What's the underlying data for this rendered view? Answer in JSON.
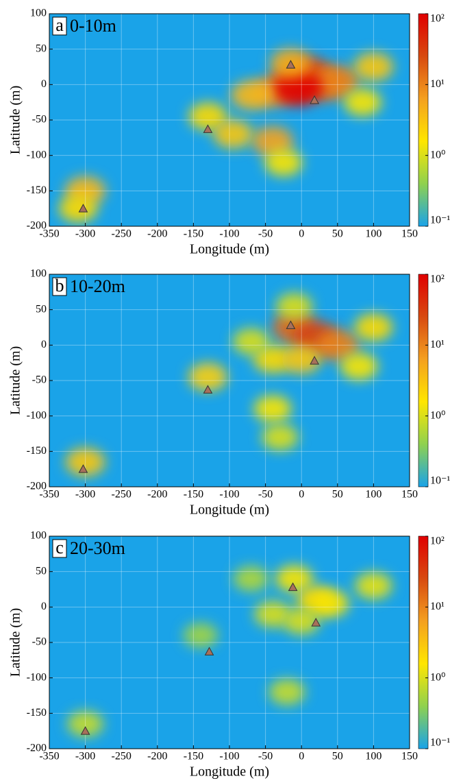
{
  "chart_data": [
    {
      "type": "heatmap",
      "panel_label": "a",
      "title": "0-10m",
      "xlabel": "Longitude (m)",
      "ylabel": "Latitude (m)",
      "xlim": [
        -350,
        150
      ],
      "ylim": [
        -200,
        100
      ],
      "xticks": [
        -350,
        -300,
        -250,
        -200,
        -150,
        -100,
        -50,
        0,
        50,
        100,
        150
      ],
      "yticks": [
        -200,
        -150,
        -100,
        -50,
        0,
        50,
        100
      ],
      "clim": [
        0.1,
        100
      ],
      "log_color": true,
      "cticks": [
        {
          "value": 0.1,
          "label": "10⁻¹"
        },
        {
          "value": 1,
          "label": "10⁰"
        },
        {
          "value": 10,
          "label": "10¹"
        },
        {
          "value": 100,
          "label": "10²"
        }
      ],
      "colormap": [
        "#1aa3e8",
        "#8fd14f",
        "#ffe600",
        "#f4a020",
        "#d84a10",
        "#e00000"
      ],
      "grid": true,
      "x": [
        -10,
        10,
        30,
        50,
        -40,
        -5,
        -15,
        100,
        -40,
        -25,
        -70,
        -130,
        -95,
        -300,
        -310,
        85
      ],
      "y": [
        5,
        15,
        0,
        5,
        -10,
        -5,
        30,
        25,
        -80,
        -110,
        -15,
        -45,
        -70,
        -150,
        -175,
        -25
      ],
      "values": [
        20,
        30,
        15,
        10,
        8,
        100,
        5,
        3,
        6,
        1.5,
        4,
        2,
        3,
        4,
        2,
        1.5
      ],
      "markers": {
        "x": [
          -15,
          18,
          -130,
          -303
        ],
        "y": [
          28,
          -22,
          -63,
          -175
        ],
        "color": "#a8705a"
      }
    },
    {
      "type": "heatmap",
      "panel_label": "b",
      "title": "10-20m",
      "xlabel": "Longitude (m)",
      "ylabel": "Latitude (m)",
      "xlim": [
        -350,
        150
      ],
      "ylim": [
        -200,
        100
      ],
      "xticks": [
        -350,
        -300,
        -250,
        -200,
        -150,
        -100,
        -50,
        0,
        50,
        100,
        150
      ],
      "yticks": [
        -200,
        -150,
        -100,
        -50,
        0,
        50,
        100
      ],
      "clim": [
        0.1,
        100
      ],
      "log_color": true,
      "cticks": [
        {
          "value": 0.1,
          "label": "10⁻¹"
        },
        {
          "value": 1,
          "label": "10⁰"
        },
        {
          "value": 10,
          "label": "10¹"
        },
        {
          "value": 100,
          "label": "10²"
        }
      ],
      "colormap": [
        "#1aa3e8",
        "#8fd14f",
        "#ffe600",
        "#f4a020",
        "#d84a10",
        "#e00000"
      ],
      "grid": true,
      "x": [
        -10,
        20,
        50,
        -40,
        0,
        -70,
        100,
        -40,
        -30,
        -130,
        -300,
        -10,
        80
      ],
      "y": [
        25,
        10,
        0,
        -20,
        -20,
        5,
        25,
        -90,
        -130,
        -45,
        -165,
        55,
        -30
      ],
      "values": [
        15,
        30,
        10,
        2,
        3,
        1,
        2,
        1.5,
        1,
        2.5,
        3,
        1,
        1.5
      ],
      "markers": {
        "x": [
          -15,
          18,
          -130,
          -303
        ],
        "y": [
          28,
          -22,
          -63,
          -175
        ],
        "color": "#a8705a"
      }
    },
    {
      "type": "heatmap",
      "panel_label": "c",
      "title": "20-30m",
      "xlabel": "Longitude (m)",
      "ylabel": "Latitude (m)",
      "xlim": [
        -350,
        150
      ],
      "ylim": [
        -200,
        100
      ],
      "xticks": [
        -350,
        -300,
        -250,
        -200,
        -150,
        -100,
        -50,
        0,
        50,
        100,
        150
      ],
      "yticks": [
        -200,
        -150,
        -100,
        -50,
        0,
        50,
        100
      ],
      "clim": [
        0.1,
        100
      ],
      "log_color": true,
      "cticks": [
        {
          "value": 0.1,
          "label": "10⁻¹"
        },
        {
          "value": 1,
          "label": "10⁰"
        },
        {
          "value": 10,
          "label": "10¹"
        },
        {
          "value": 100,
          "label": "10²"
        }
      ],
      "colormap": [
        "#1aa3e8",
        "#8fd14f",
        "#ffe600",
        "#f4a020",
        "#d84a10",
        "#e00000"
      ],
      "grid": true,
      "x": [
        -10,
        20,
        40,
        -40,
        0,
        100,
        -20,
        -300,
        -140,
        -70
      ],
      "y": [
        40,
        10,
        5,
        -10,
        -20,
        30,
        -120,
        -165,
        -40,
        40
      ],
      "values": [
        1.5,
        2,
        1.5,
        1,
        1,
        1.2,
        0.8,
        0.8,
        0.5,
        0.6
      ],
      "markers": {
        "x": [
          -12,
          20,
          -128,
          -300
        ],
        "y": [
          28,
          -22,
          -63,
          -175
        ],
        "color": "#a8705a"
      }
    }
  ]
}
